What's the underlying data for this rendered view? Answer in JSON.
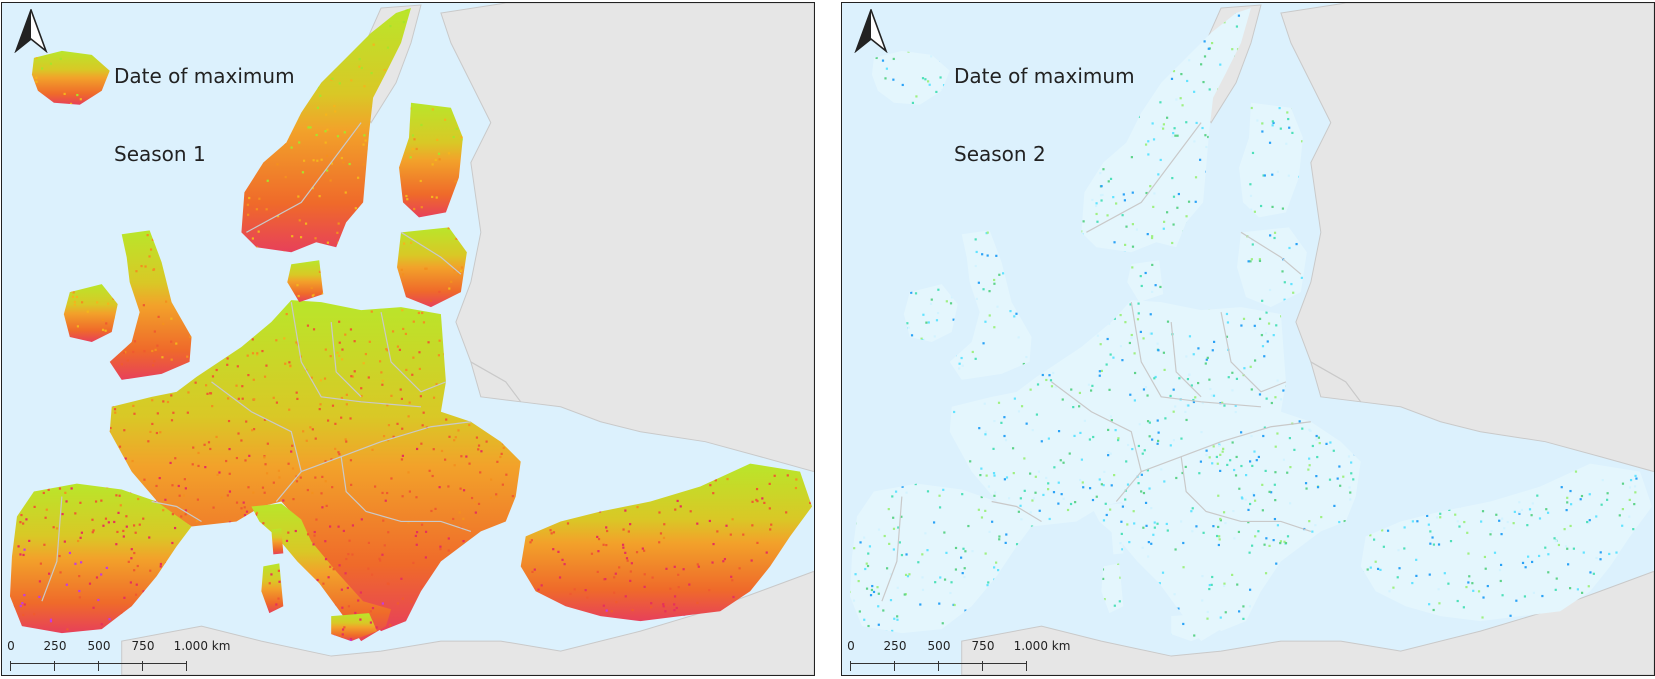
{
  "colors": {
    "sea": "#dcf1fd",
    "land_outside": "#e6e6e6",
    "border": "#c9c9c9",
    "frame": "#222222"
  },
  "panels": [
    {
      "title_line1": "Date of maximum",
      "title_line2": "Season 1",
      "north_arrow_icon": "north-arrow-icon",
      "scale": {
        "labels": [
          "0",
          "250",
          "500",
          "750",
          "1.000 km"
        ]
      },
      "palette": [
        "#a8e42a",
        "#f4b51d",
        "#f3901f",
        "#ef5a2f",
        "#e6305c",
        "#c43be0"
      ]
    },
    {
      "title_line1": "Date of maximum",
      "title_line2": "Season 2",
      "north_arrow_icon": "north-arrow-icon",
      "scale": {
        "labels": [
          "0",
          "250",
          "500",
          "750",
          "1.000 km"
        ]
      },
      "palette": [
        "#62e3ff",
        "#4fe0b9",
        "#5ed38a",
        "#9ff083",
        "#2aa2f6",
        "#d3f3ff"
      ]
    }
  ]
}
